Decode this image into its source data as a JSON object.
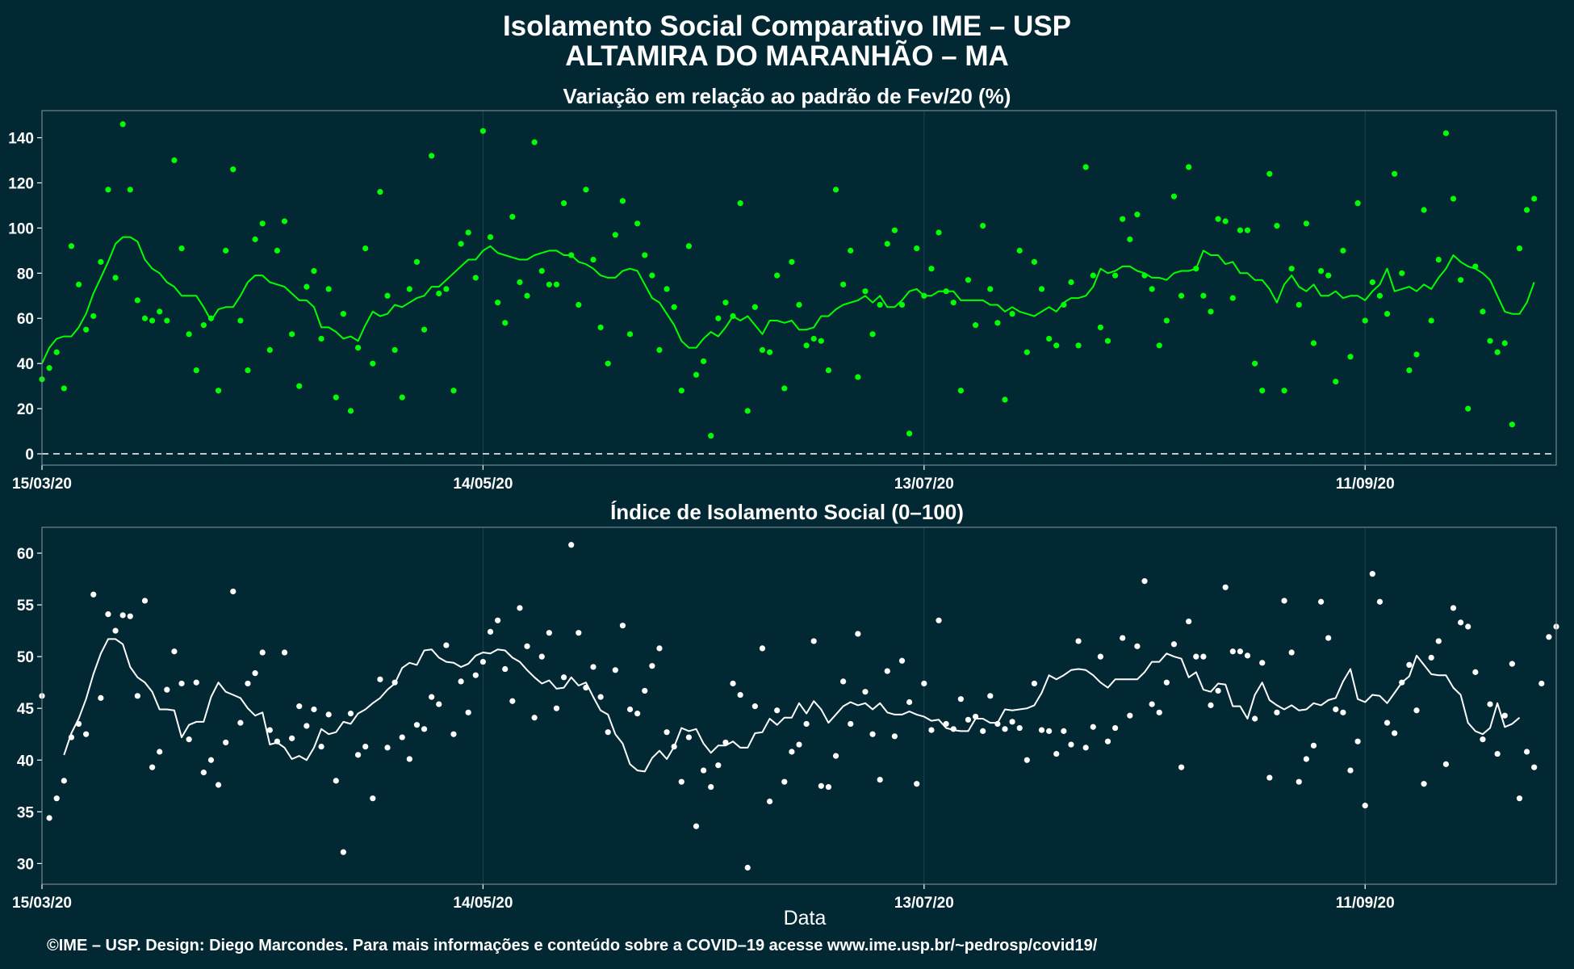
{
  "title": "Isolamento Social Comparativo IME – USP",
  "subtitle": "ALTAMIRA DO MARANHÃO – MA",
  "xlabel": "Data",
  "credit": "©IME – USP. Design: Diego Marcondes. Para mais informações e conteúdo sobre a COVID–19 acesse www.ime.usp.br/~pedrosp/covid19/",
  "colors": {
    "background": "#022833",
    "series_top": "#00ff00",
    "series_bottom": "#ffffff"
  },
  "chart_data": [
    {
      "type": "scatter",
      "title": "Variação em relação ao padrão de Fev/20 (%)",
      "x_start": "15/03/20",
      "x_tick_labels": [
        "15/03/20",
        "14/05/20",
        "13/07/20",
        "11/09/20"
      ],
      "x_tick_days": [
        0,
        60,
        120,
        180
      ],
      "xlim_days": [
        0,
        206
      ],
      "ylim": [
        -5,
        152
      ],
      "y_ticks": [
        0,
        20,
        40,
        60,
        80,
        100,
        120,
        140
      ],
      "reference_line": 0,
      "grid": true,
      "series": [
        {
          "style": "points",
          "values": [
            33,
            38,
            45,
            29,
            92,
            75,
            55,
            61,
            85,
            117,
            78,
            146,
            117,
            68,
            60,
            59,
            63,
            59,
            130,
            91,
            53,
            37,
            57,
            60,
            28,
            90,
            126,
            59,
            37,
            95,
            102,
            46,
            90,
            103,
            53,
            30,
            74,
            81,
            51,
            73,
            25,
            62,
            19,
            47,
            91,
            40,
            116,
            70,
            46,
            25,
            73,
            85,
            55,
            132,
            71,
            73,
            28,
            93,
            98,
            78,
            143,
            96,
            67,
            58,
            105,
            76,
            70,
            138,
            81,
            75,
            75,
            111,
            88,
            66,
            117,
            86,
            56,
            40,
            97,
            112,
            53,
            102,
            88,
            79,
            46,
            73,
            65,
            28,
            92,
            35,
            41,
            8,
            60,
            67,
            61,
            111,
            19,
            65,
            46,
            45,
            79,
            29,
            85,
            66,
            48,
            51,
            50,
            37,
            117,
            75,
            90,
            34,
            72,
            53,
            66,
            93,
            99,
            66,
            9,
            91,
            70,
            82,
            98,
            72,
            67,
            28,
            77,
            57,
            101,
            73,
            58,
            24,
            62,
            90,
            45,
            85,
            73,
            51,
            48,
            66,
            76,
            48,
            127,
            79,
            56,
            50,
            79,
            104,
            95,
            106,
            79,
            73,
            48,
            59,
            114,
            70,
            127,
            82,
            70,
            63,
            104,
            103,
            69,
            99,
            99,
            40,
            28,
            124,
            101,
            28,
            82,
            66,
            102,
            49,
            81,
            79,
            32,
            90,
            43,
            111,
            59,
            76,
            70,
            62,
            124,
            80,
            37,
            44,
            108,
            59,
            86,
            142,
            113,
            77,
            20,
            83,
            63,
            50,
            45,
            49,
            13,
            91,
            108,
            113
          ]
        },
        {
          "style": "line",
          "start_day": 0,
          "values": [
            40,
            47,
            51,
            52,
            52,
            56,
            62,
            71,
            78,
            85,
            93,
            96,
            96,
            94,
            86,
            82,
            80,
            76,
            74,
            70,
            70,
            70,
            65,
            59,
            64,
            65,
            65,
            70,
            76,
            79,
            79,
            76,
            75,
            74,
            71,
            68,
            68,
            65,
            56,
            56,
            54,
            51,
            52,
            50,
            57,
            63,
            61,
            62,
            66,
            65,
            67,
            69,
            70,
            74,
            74,
            77,
            80,
            83,
            86,
            86,
            90,
            92,
            89,
            88,
            87,
            86,
            86,
            88,
            89,
            90,
            90,
            88,
            88,
            85,
            84,
            82,
            79,
            78,
            78,
            81,
            82,
            81,
            75,
            69,
            67,
            62,
            57,
            50,
            47,
            47,
            51,
            54,
            52,
            56,
            61,
            59,
            61,
            57,
            53,
            59,
            59,
            58,
            59,
            55,
            55,
            56,
            61,
            61,
            64,
            66,
            67,
            68,
            70,
            67,
            70,
            65,
            65,
            68,
            72,
            73,
            70,
            70,
            72,
            72,
            72,
            68,
            68,
            68,
            68,
            66,
            66,
            63,
            65,
            63,
            62,
            61,
            63,
            65,
            63,
            67,
            69,
            69,
            70,
            74,
            82,
            80,
            81,
            83,
            83,
            81,
            80,
            78,
            78,
            77,
            80,
            81,
            81,
            82,
            90,
            88,
            88,
            84,
            85,
            80,
            80,
            77,
            77,
            73,
            67,
            75,
            79,
            74,
            72,
            75,
            70,
            70,
            72,
            69,
            70,
            70,
            68,
            72,
            75,
            82,
            72,
            73,
            74,
            72,
            75,
            73,
            78,
            82,
            88,
            85,
            83,
            82,
            80,
            77,
            70,
            63,
            62,
            62,
            67,
            76
          ]
        }
      ]
    },
    {
      "type": "scatter",
      "title": "Índice de Isolamento Social (0–100)",
      "x_start": "15/03/20",
      "x_tick_labels": [
        "15/03/20",
        "14/05/20",
        "13/07/20",
        "11/09/20"
      ],
      "x_tick_days": [
        0,
        60,
        120,
        180
      ],
      "xlim_days": [
        0,
        206
      ],
      "ylim": [
        28,
        62.5
      ],
      "y_ticks": [
        30,
        35,
        40,
        45,
        50,
        55,
        60
      ],
      "grid": true,
      "series": [
        {
          "style": "points",
          "values": [
            46.2,
            34.4,
            36.3,
            38,
            42.2,
            43.5,
            42.5,
            56,
            46,
            54.1,
            52.5,
            54,
            53.9,
            46.2,
            55.4,
            39.3,
            40.8,
            46.8,
            50.5,
            47.4,
            42,
            47.5,
            38.8,
            40,
            37.6,
            41.7,
            56.3,
            43.6,
            47.4,
            48.4,
            50.4,
            42.9,
            41.8,
            50.4,
            42.1,
            45.2,
            43.3,
            44.9,
            41.3,
            44.4,
            38,
            31.1,
            44.5,
            40.5,
            41.3,
            36.3,
            47.8,
            41.2,
            47.5,
            42.2,
            40.1,
            43.4,
            43,
            46.1,
            45.4,
            51.1,
            42.5,
            47.6,
            44.6,
            48.2,
            49.5,
            52.4,
            53.5,
            48.8,
            45.7,
            54.7,
            51,
            44.1,
            50,
            52.3,
            45,
            48,
            60.8,
            52.3,
            47,
            49,
            46.1,
            42.7,
            48.7,
            53,
            44.9,
            44.5,
            46.7,
            49.1,
            50.8,
            42.7,
            41.3,
            37.9,
            42.2,
            33.6,
            39,
            37.4,
            39.5,
            41.7,
            47.4,
            46.3,
            29.6,
            45.2,
            50.8,
            36,
            44.8,
            37.9,
            40.8,
            41.5,
            43.5,
            51.5,
            37.5,
            37.4,
            40.4,
            47.6,
            43.5,
            52.2,
            46.6,
            42.5,
            38.1,
            48.6,
            42.3,
            49.6,
            45.6,
            37.7,
            47.4,
            42.9,
            53.5,
            43.5,
            43,
            45.9,
            43.9,
            44.2,
            42.8,
            46.2,
            43.5,
            43,
            43.7,
            43.1,
            40,
            47.4,
            42.9,
            42.8,
            40.6,
            42.8,
            41.5,
            51.5,
            41.2,
            43.2,
            50,
            41.8,
            43.1,
            51.8,
            44.3,
            51,
            57.3,
            45.4,
            44.6,
            47.5,
            51.2,
            39.3,
            53.4,
            50,
            50,
            45.3,
            46.7,
            56.7,
            50.5,
            50.5,
            50.1,
            44,
            49.4,
            38.3,
            44.6,
            55.4,
            50.4,
            37.9,
            40.1,
            41.4,
            55.3,
            51.8,
            44.9,
            44.6,
            39,
            41.8,
            35.6,
            58,
            55.3,
            43.6,
            42.6,
            47.5,
            49.2,
            44.8,
            37.7,
            49.9,
            51.5,
            39.6,
            54.7,
            53.3,
            52.9,
            48.5,
            42,
            45.4,
            40.6,
            44.3,
            49.3,
            36.3,
            40.8,
            39.3,
            47.4,
            51.9,
            52.9
          ]
        },
        {
          "style": "line",
          "start_day": 3,
          "values": [
            40.5,
            42.6,
            44,
            45.9,
            48.3,
            50.3,
            51.7,
            51.7,
            51.2,
            49,
            48,
            47.5,
            46.6,
            44.9,
            44.9,
            44.8,
            42.2,
            43.4,
            43.7,
            43.7,
            46.1,
            47.5,
            46.6,
            46.3,
            46,
            45,
            44.3,
            44.6,
            41.5,
            41.7,
            41.2,
            40.1,
            40.4,
            40,
            41.2,
            43,
            42.5,
            42.7,
            43.7,
            43.5,
            44.5,
            44.9,
            45.5,
            46,
            46.8,
            47.4,
            48.9,
            49.4,
            49.2,
            50.6,
            50.7,
            49.9,
            49.5,
            49.4,
            49,
            49.3,
            50.1,
            50.4,
            50.3,
            50.7,
            50.6,
            49.9,
            49.5,
            48.7,
            48,
            47.4,
            47.7,
            46.9,
            47,
            48,
            47.2,
            47.5,
            46.1,
            44.8,
            44.4,
            42.5,
            41.6,
            39.6,
            39,
            38.9,
            40.2,
            40.9,
            40.1,
            41.3,
            43.1,
            42.8,
            43,
            41.6,
            40.7,
            41.4,
            41.4,
            41.8,
            41.2,
            41.2,
            42.6,
            42.7,
            44,
            43.4,
            44.1,
            44.1,
            45.5,
            44.5,
            45.7,
            44.9,
            43.6,
            44.4,
            45.2,
            45.6,
            45.3,
            45.5,
            44.9,
            45.5,
            44.6,
            44.4,
            44.4,
            44.7,
            44.4,
            44.2,
            43.8,
            43.9,
            43.1,
            42.9,
            42.8,
            42.8,
            44,
            44,
            43.6,
            43.6,
            44.9,
            44.8,
            44.9,
            45,
            45.3,
            46.5,
            48.2,
            47.8,
            48.2,
            48.7,
            48.8,
            48.7,
            48.2,
            47.5,
            47,
            47.8,
            47.8,
            47.8,
            47.8,
            48.5,
            49.5,
            49.5,
            50.3,
            50,
            49.8,
            48,
            48.5,
            46.8,
            46.6,
            47.4,
            47.3,
            45.2,
            45.2,
            44,
            46.3,
            47.5,
            45.8,
            45.3,
            44.9,
            45.3,
            44.8,
            44.9,
            45.5,
            45.3,
            45.8,
            46,
            47.6,
            48.8,
            45.9,
            45.6,
            46.3,
            46.2,
            45.5,
            46.5,
            47.5,
            48.1,
            50.1,
            49.2,
            48.3,
            48.2,
            48.2,
            47,
            46.3,
            43.6,
            42.8,
            42.5,
            43.1,
            45.5,
            43.2,
            43.5,
            44.1
          ]
        }
      ]
    }
  ]
}
